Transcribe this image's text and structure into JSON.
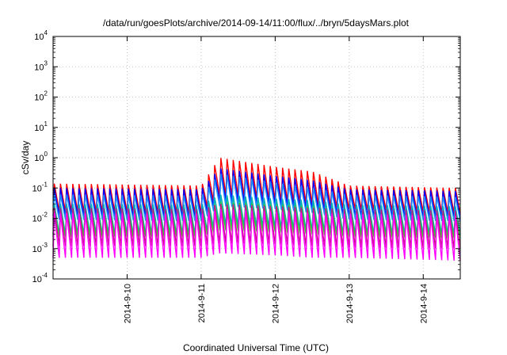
{
  "chart_data": {
    "type": "line",
    "title": "/data/run/goesPlots/archive/2014-09-14/11:00/flux/../bryn/5daysMars.plot",
    "xlabel": "Coordinated Universal Time (UTC)",
    "ylabel": "cSv/day",
    "yscale": "log",
    "ylim": [
      0.0001,
      10000
    ],
    "y_ticks": [
      {
        "value": 0.0001,
        "base": "10",
        "exp": "-4"
      },
      {
        "value": 0.001,
        "base": "10",
        "exp": "-3"
      },
      {
        "value": 0.01,
        "base": "10",
        "exp": "-2"
      },
      {
        "value": 0.1,
        "base": "10",
        "exp": "-1"
      },
      {
        "value": 1,
        "base": "10",
        "exp": "0"
      },
      {
        "value": 10,
        "base": "10",
        "exp": "1"
      },
      {
        "value": 100,
        "base": "10",
        "exp": "2"
      },
      {
        "value": 1000,
        "base": "10",
        "exp": "3"
      },
      {
        "value": 10000,
        "base": "10",
        "exp": "4"
      }
    ],
    "xlim": [
      "2014-09-09 00:00",
      "2014-09-14 12:00"
    ],
    "x_ticks": [
      "2014-9-10",
      "2014-9-11",
      "2014-9-12",
      "2014-9-13",
      "2014-9-14"
    ],
    "grid": true,
    "legend": "none",
    "cycle_hours": 2,
    "sawtooth_phase": 0.2,
    "series": [
      {
        "color": "#ff0000",
        "values": [
          {
            "x": "2014-09-09 00:00",
            "min": 0.017,
            "max": 0.14
          },
          {
            "x": "2014-09-11 00:00",
            "min": 0.015,
            "max": 0.12
          },
          {
            "x": "2014-09-11 06:00",
            "min": 0.06,
            "max": 1.0
          },
          {
            "x": "2014-09-12 00:00",
            "min": 0.04,
            "max": 0.5
          },
          {
            "x": "2014-09-12 12:00",
            "min": 0.03,
            "max": 0.35
          },
          {
            "x": "2014-09-13 00:00",
            "min": 0.02,
            "max": 0.12
          },
          {
            "x": "2014-09-14 12:00",
            "min": 0.015,
            "max": 0.1
          }
        ]
      },
      {
        "color": "#0000ff",
        "values": [
          {
            "x": "2014-09-09 00:00",
            "min": 0.012,
            "max": 0.1
          },
          {
            "x": "2014-09-11 00:00",
            "min": 0.01,
            "max": 0.09
          },
          {
            "x": "2014-09-11 06:00",
            "min": 0.04,
            "max": 0.45
          },
          {
            "x": "2014-09-12 00:00",
            "min": 0.03,
            "max": 0.25
          },
          {
            "x": "2014-09-12 12:00",
            "min": 0.02,
            "max": 0.18
          },
          {
            "x": "2014-09-13 00:00",
            "min": 0.012,
            "max": 0.09
          },
          {
            "x": "2014-09-14 12:00",
            "min": 0.01,
            "max": 0.08
          }
        ]
      },
      {
        "color": "#1e90ff",
        "values": [
          {
            "x": "2014-09-09 00:00",
            "min": 0.009,
            "max": 0.06
          },
          {
            "x": "2014-09-11 00:00",
            "min": 0.008,
            "max": 0.055
          },
          {
            "x": "2014-09-11 06:00",
            "min": 0.025,
            "max": 0.3
          },
          {
            "x": "2014-09-12 00:00",
            "min": 0.02,
            "max": 0.15
          },
          {
            "x": "2014-09-12 12:00",
            "min": 0.015,
            "max": 0.1
          },
          {
            "x": "2014-09-13 00:00",
            "min": 0.009,
            "max": 0.06
          },
          {
            "x": "2014-09-14 12:00",
            "min": 0.008,
            "max": 0.05
          }
        ]
      },
      {
        "color": "#00b0b0",
        "values": [
          {
            "x": "2014-09-09 00:00",
            "min": 0.003,
            "max": 0.03
          },
          {
            "x": "2014-09-11 00:00",
            "min": 0.003,
            "max": 0.028
          },
          {
            "x": "2014-09-11 06:00",
            "min": 0.006,
            "max": 0.06
          },
          {
            "x": "2014-09-12 00:00",
            "min": 0.005,
            "max": 0.045
          },
          {
            "x": "2014-09-12 12:00",
            "min": 0.004,
            "max": 0.04
          },
          {
            "x": "2014-09-13 00:00",
            "min": 0.003,
            "max": 0.028
          },
          {
            "x": "2014-09-14 12:00",
            "min": 0.003,
            "max": 0.025
          }
        ]
      },
      {
        "color": "#32cd32",
        "values": [
          {
            "x": "2014-09-09 00:00",
            "min": 0.0025,
            "max": 0.02
          },
          {
            "x": "2014-09-11 00:00",
            "min": 0.0025,
            "max": 0.018
          },
          {
            "x": "2014-09-11 06:00",
            "min": 0.004,
            "max": 0.035
          },
          {
            "x": "2014-09-12 00:00",
            "min": 0.0035,
            "max": 0.028
          },
          {
            "x": "2014-09-12 12:00",
            "min": 0.003,
            "max": 0.025
          },
          {
            "x": "2014-09-13 00:00",
            "min": 0.0025,
            "max": 0.018
          },
          {
            "x": "2014-09-14 12:00",
            "min": 0.0022,
            "max": 0.016
          }
        ]
      },
      {
        "color": "#c71585",
        "values": [
          {
            "x": "2014-09-09 00:00",
            "min": 0.0012,
            "max": 0.022
          },
          {
            "x": "2014-09-11 00:00",
            "min": 0.0012,
            "max": 0.02
          },
          {
            "x": "2014-09-11 06:00",
            "min": 0.0015,
            "max": 0.03
          },
          {
            "x": "2014-09-12 00:00",
            "min": 0.0014,
            "max": 0.025
          },
          {
            "x": "2014-09-12 12:00",
            "min": 0.0012,
            "max": 0.022
          },
          {
            "x": "2014-09-13 00:00",
            "min": 0.0011,
            "max": 0.02
          },
          {
            "x": "2014-09-14 12:00",
            "min": 0.001,
            "max": 0.018
          }
        ]
      },
      {
        "color": "#ff00ff",
        "values": [
          {
            "x": "2014-09-09 00:00",
            "min": 0.0005,
            "max": 0.015
          },
          {
            "x": "2014-09-11 00:00",
            "min": 0.0005,
            "max": 0.014
          },
          {
            "x": "2014-09-11 06:00",
            "min": 0.0007,
            "max": 0.02
          },
          {
            "x": "2014-09-12 00:00",
            "min": 0.0006,
            "max": 0.017
          },
          {
            "x": "2014-09-12 12:00",
            "min": 0.0005,
            "max": 0.015
          },
          {
            "x": "2014-09-13 00:00",
            "min": 0.0005,
            "max": 0.014
          },
          {
            "x": "2014-09-14 12:00",
            "min": 0.0004,
            "max": 0.012
          }
        ]
      }
    ]
  }
}
